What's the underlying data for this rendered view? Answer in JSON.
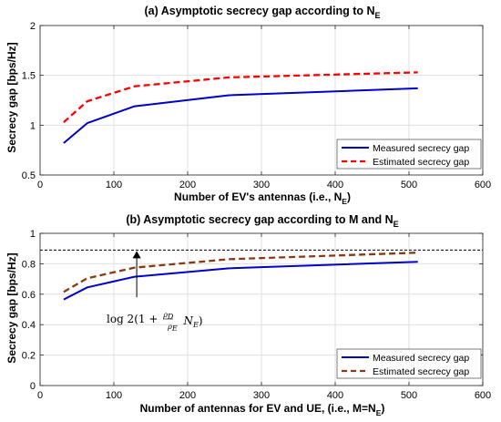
{
  "chart_data": [
    {
      "type": "line",
      "title": "(a) Asymptotic secrecy gap according to N_E",
      "title_parts": {
        "main": "(a) Asymptotic secrecy gap according to N",
        "sub": "E"
      },
      "xlabel": "Number of EV's antennas (i.e., N_E)",
      "xlabel_parts": {
        "main": "Number of EV's antennas (i.e., N",
        "sub": "E",
        "end": ")"
      },
      "ylabel": "Secrecy gap [bps/Hz]",
      "xlim": [
        0,
        600
      ],
      "ylim": [
        0.5,
        2
      ],
      "xticks": [
        0,
        100,
        200,
        300,
        400,
        500,
        600
      ],
      "yticks": [
        0.5,
        1,
        1.5,
        2
      ],
      "ytick_labels": [
        "0.5",
        "1",
        "1.5",
        "2"
      ],
      "grid": true,
      "legend_position": "bottom-right",
      "x": [
        32,
        64,
        128,
        256,
        512
      ],
      "series": [
        {
          "name": "Measured secrecy gap",
          "values": [
            0.82,
            1.02,
            1.19,
            1.3,
            1.37
          ],
          "color": "#0000cc",
          "style": "solid"
        },
        {
          "name": "Estimated secrecy gap",
          "values": [
            1.03,
            1.24,
            1.39,
            1.48,
            1.53
          ],
          "color": "#ff0000",
          "style": "dashed"
        }
      ]
    },
    {
      "type": "line",
      "title": "(b) Asymptotic secrecy gap according to M and N_E",
      "title_parts": {
        "main": "(b) Asymptotic secrecy gap according to M and N",
        "sub": "E"
      },
      "xlabel": "Number of antennas for EV and UE, (i.e., M=N_E)",
      "xlabel_parts": {
        "main": "Number of antennas for EV and UE, (i.e., M=N",
        "sub": "E",
        "end": ")"
      },
      "ylabel": "Secrecy gap [bps/Hz]",
      "xlim": [
        0,
        600
      ],
      "ylim": [
        0,
        1
      ],
      "xticks": [
        0,
        100,
        200,
        300,
        400,
        500,
        600
      ],
      "yticks": [
        0,
        0.2,
        0.4,
        0.6,
        0.8,
        1
      ],
      "ytick_labels": [
        "0",
        "0.2",
        "0.4",
        "0.6",
        "0.8",
        "1"
      ],
      "grid": true,
      "legend_position": "bottom-right",
      "x": [
        32,
        64,
        128,
        256,
        512
      ],
      "series": [
        {
          "name": "Measured secrecy gap",
          "values": [
            0.565,
            0.645,
            0.715,
            0.77,
            0.813
          ],
          "color": "#0000cc",
          "style": "solid"
        },
        {
          "name": "Estimated secrecy gap",
          "values": [
            0.615,
            0.705,
            0.775,
            0.83,
            0.873
          ],
          "color": "#8b3a0f",
          "style": "dashed"
        }
      ],
      "asymptote": {
        "y": 0.89,
        "color": "#000000",
        "style": "dashed"
      },
      "annotation": {
        "text": "log 2(1 + ρ_D/ρ_E N_E)",
        "parts": {
          "pre": "log 2(1 +",
          "num": "ρ",
          "num_sub": "D",
          "den": "ρ",
          "den_sub": "E",
          "var": "N",
          "var_sub": "E",
          "end": ")"
        },
        "arrow_from": [
          131,
          0.58
        ],
        "arrow_to": [
          131,
          0.89
        ]
      }
    }
  ]
}
